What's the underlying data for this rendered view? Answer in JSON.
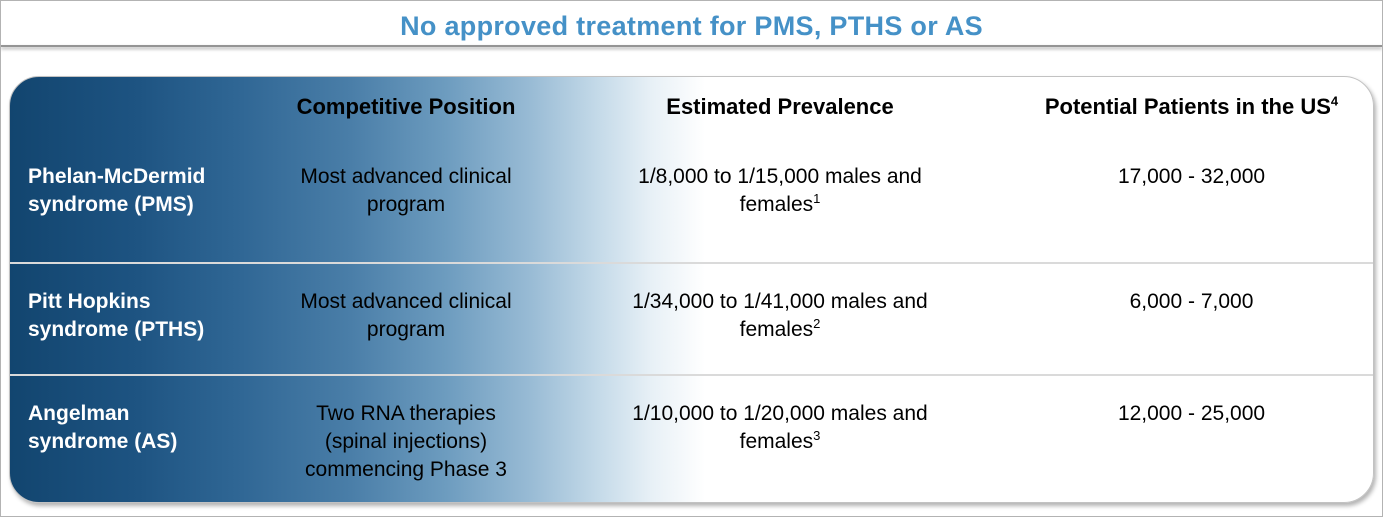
{
  "page": {
    "title": "No approved treatment for PMS, PTHS or AS"
  },
  "table": {
    "headers": {
      "competitive_position": "Competitive Position",
      "estimated_prevalence": "Estimated Prevalence",
      "potential_patients": "Potential Patients in the US",
      "potential_patients_footnote": "4"
    },
    "rows": [
      {
        "syndrome": "Phelan-McDermid\nsyndrome (PMS)",
        "competitive_position": "Most advanced clinical\nprogram",
        "estimated_prevalence": "1/8,000 to 1/15,000 males and\nfemales",
        "prevalence_footnote": "1",
        "potential_patients": "17,000 - 32,000"
      },
      {
        "syndrome": "Pitt Hopkins\nsyndrome (PTHS)",
        "competitive_position": "Most advanced clinical\nprogram",
        "estimated_prevalence": "1/34,000 to 1/41,000 males and\nfemales",
        "prevalence_footnote": "2",
        "potential_patients": "6,000 - 7,000"
      },
      {
        "syndrome": "Angelman\nsyndrome (AS)",
        "competitive_position": "Two RNA therapies\n(spinal injections)\ncommencing Phase 3",
        "estimated_prevalence": "1/10,000 to 1/20,000 males and\nfemales",
        "prevalence_footnote": "3",
        "potential_patients": "12,000 - 25,000"
      }
    ]
  },
  "colors": {
    "title_blue": "#4591c7",
    "panel_gradient_dark": "#12456f",
    "panel_gradient_light": "#ffffff",
    "row_divider": "#dadada",
    "syndrome_text": "#ffffff",
    "body_text": "#000000"
  }
}
